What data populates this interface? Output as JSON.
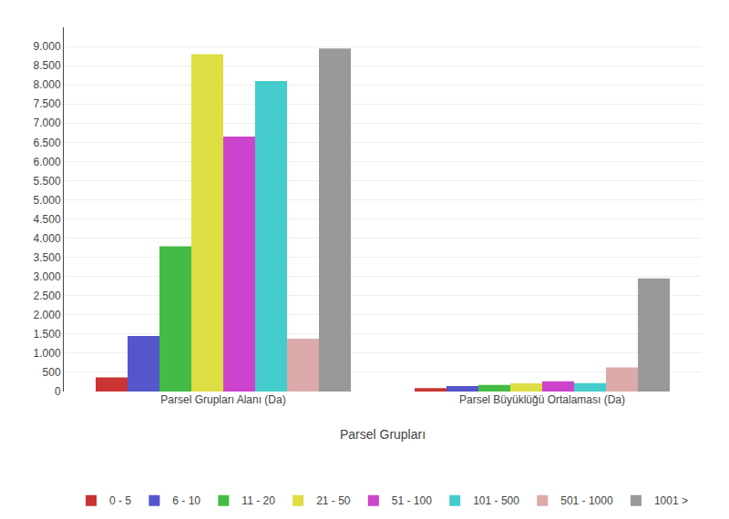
{
  "chart_data": {
    "type": "bar",
    "xlabel": "Parsel Grupları",
    "categories": [
      "Parsel Grupları Alanı (Da)",
      "Parsel Büyüklüğü Ortalaması (Da)"
    ],
    "series": [
      {
        "name": "0 - 5",
        "color": "#CC3333",
        "values": [
          370,
          90
        ]
      },
      {
        "name": "6 - 10",
        "color": "#5555CC",
        "values": [
          1450,
          145
        ]
      },
      {
        "name": "11 - 20",
        "color": "#44BB44",
        "values": [
          3790,
          170
        ]
      },
      {
        "name": "21 - 50",
        "color": "#DDDD44",
        "values": [
          8800,
          215
        ]
      },
      {
        "name": "51 - 100",
        "color": "#CC44CC",
        "values": [
          6650,
          265
        ]
      },
      {
        "name": "101 - 500",
        "color": "#44CCCC",
        "values": [
          8100,
          220
        ]
      },
      {
        "name": "501 - 1000",
        "color": "#DDAAAA",
        "values": [
          1380,
          630
        ]
      },
      {
        "name": "1001 >",
        "color": "#999999",
        "values": [
          8950,
          2950
        ]
      }
    ],
    "ylim": [
      0,
      9500
    ],
    "yticks": [
      0,
      500,
      {
        "value": 1000,
        "label": "1.000"
      },
      {
        "value": 1500,
        "label": "1.500"
      },
      {
        "value": 2000,
        "label": "2.000"
      },
      {
        "value": 2500,
        "label": "2.500"
      },
      {
        "value": 3000,
        "label": "3.000"
      },
      {
        "value": 3500,
        "label": "3.500"
      },
      {
        "value": 4000,
        "label": "4.000"
      },
      {
        "value": 4500,
        "label": "4.500"
      },
      {
        "value": 5000,
        "label": "5.000"
      },
      {
        "value": 5500,
        "label": "5.500"
      },
      {
        "value": 6000,
        "label": "6.000"
      },
      {
        "value": 6500,
        "label": "6.500"
      },
      {
        "value": 7000,
        "label": "7.000"
      },
      {
        "value": 7500,
        "label": "7.500"
      },
      {
        "value": 8000,
        "label": "8.000"
      },
      {
        "value": 8500,
        "label": "8.500"
      },
      {
        "value": 9000,
        "label": "9.000"
      }
    ],
    "grid": true,
    "legend": "bottom"
  }
}
